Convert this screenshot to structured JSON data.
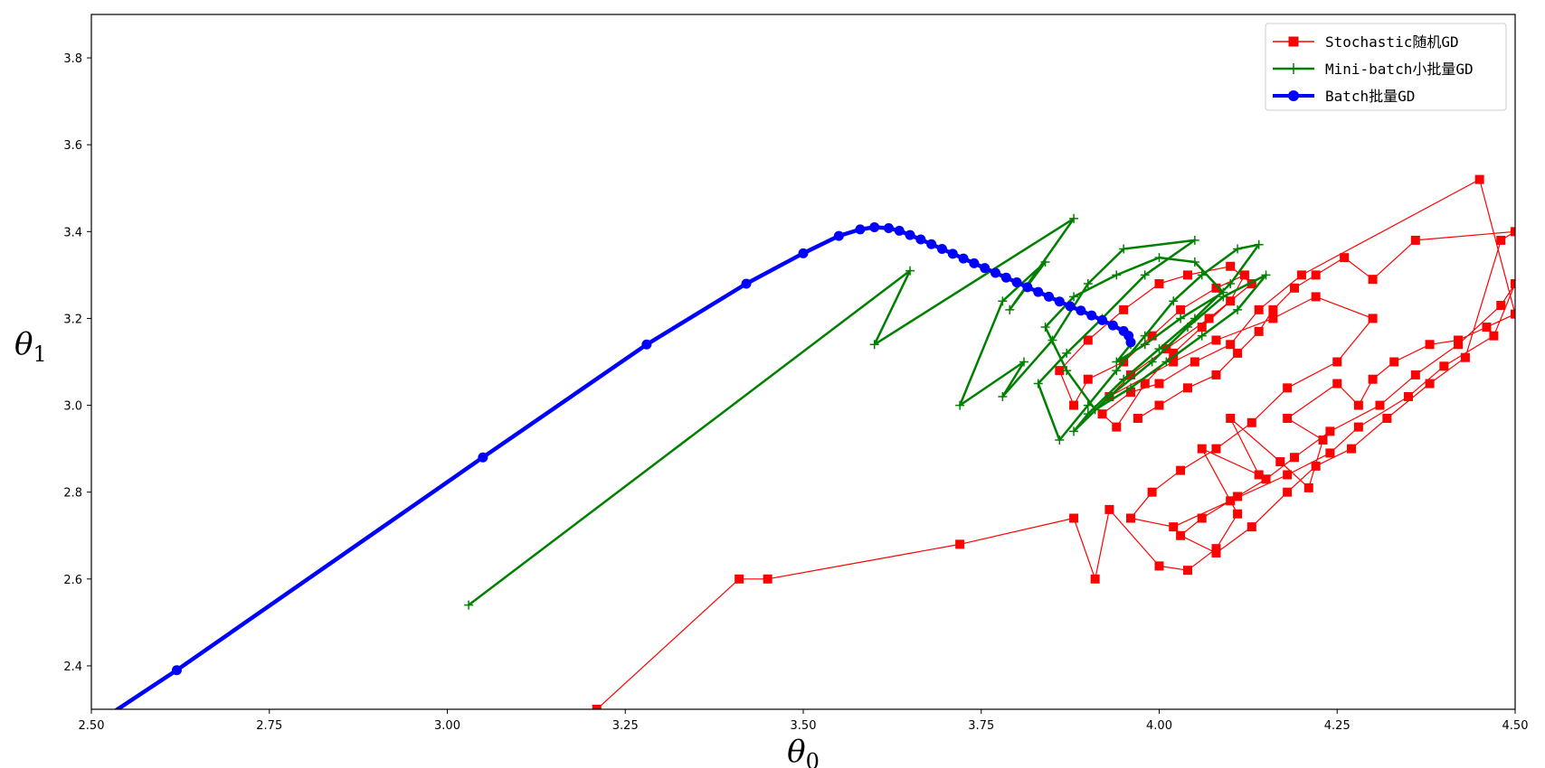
{
  "chart_data": {
    "type": "line",
    "title": "",
    "xlabel": "θ0",
    "ylabel": "θ1",
    "xlim": [
      2.5,
      4.5
    ],
    "ylim": [
      2.3,
      3.9
    ],
    "grid": false,
    "legend_position": "top-right",
    "x_ticks": [
      "2.50",
      "2.75",
      "3.00",
      "3.25",
      "3.50",
      "3.75",
      "4.00",
      "4.25",
      "4.50"
    ],
    "y_ticks": [
      "2.4",
      "2.6",
      "2.8",
      "3.0",
      "3.2",
      "3.4",
      "3.6",
      "3.8"
    ],
    "series": [
      {
        "name": "Stochastic随机GD",
        "color": "#ff0000",
        "marker": "square",
        "points": [
          [
            3.21,
            2.3
          ],
          [
            3.41,
            2.6
          ],
          [
            3.45,
            2.6
          ],
          [
            3.72,
            2.68
          ],
          [
            3.88,
            2.74
          ],
          [
            3.91,
            2.6
          ],
          [
            3.93,
            2.76
          ],
          [
            4.0,
            2.63
          ],
          [
            4.04,
            2.62
          ],
          [
            4.08,
            2.67
          ],
          [
            4.11,
            2.75
          ],
          [
            4.06,
            2.9
          ],
          [
            4.14,
            2.84
          ],
          [
            4.1,
            2.97
          ],
          [
            4.17,
            2.87
          ],
          [
            4.21,
            2.81
          ],
          [
            4.23,
            2.92
          ],
          [
            4.18,
            2.97
          ],
          [
            4.25,
            3.05
          ],
          [
            4.28,
            3.0
          ],
          [
            4.3,
            3.06
          ],
          [
            4.33,
            3.1
          ],
          [
            4.38,
            3.14
          ],
          [
            4.42,
            3.15
          ],
          [
            4.46,
            3.18
          ],
          [
            4.5,
            3.21
          ],
          [
            4.45,
            3.52
          ],
          [
            4.2,
            3.3
          ],
          [
            4.14,
            3.22
          ],
          [
            4.1,
            3.14
          ],
          [
            4.05,
            3.1
          ],
          [
            4.0,
            3.05
          ],
          [
            3.96,
            3.03
          ],
          [
            3.92,
            2.98
          ],
          [
            3.94,
            2.95
          ],
          [
            3.98,
            3.05
          ],
          [
            4.02,
            3.12
          ],
          [
            4.06,
            3.18
          ],
          [
            4.1,
            3.24
          ],
          [
            4.12,
            3.3
          ],
          [
            4.08,
            3.27
          ],
          [
            4.03,
            3.22
          ],
          [
            3.99,
            3.16
          ],
          [
            3.95,
            3.1
          ],
          [
            3.9,
            3.06
          ],
          [
            3.88,
            3.0
          ],
          [
            3.86,
            3.08
          ],
          [
            3.9,
            3.15
          ],
          [
            3.95,
            3.22
          ],
          [
            4.0,
            3.28
          ],
          [
            4.04,
            3.3
          ],
          [
            4.1,
            3.32
          ],
          [
            4.13,
            3.28
          ],
          [
            4.07,
            3.2
          ],
          [
            4.01,
            3.13
          ],
          [
            3.96,
            3.07
          ],
          [
            3.93,
            3.02
          ],
          [
            4.02,
            3.1
          ],
          [
            4.08,
            3.15
          ],
          [
            4.16,
            3.2
          ],
          [
            4.22,
            3.25
          ],
          [
            4.3,
            3.2
          ],
          [
            4.25,
            3.1
          ],
          [
            4.18,
            3.04
          ],
          [
            4.13,
            2.96
          ],
          [
            4.08,
            2.9
          ],
          [
            4.03,
            2.85
          ],
          [
            3.99,
            2.8
          ],
          [
            3.96,
            2.74
          ],
          [
            4.02,
            2.72
          ],
          [
            4.1,
            2.78
          ],
          [
            4.18,
            2.84
          ],
          [
            4.24,
            2.89
          ],
          [
            4.28,
            2.95
          ],
          [
            4.35,
            3.02
          ],
          [
            4.4,
            3.09
          ],
          [
            4.47,
            3.16
          ],
          [
            4.5,
            3.28
          ],
          [
            4.48,
            3.23
          ],
          [
            4.42,
            3.14
          ],
          [
            4.36,
            3.07
          ],
          [
            4.31,
            3.0
          ],
          [
            4.24,
            2.94
          ],
          [
            4.19,
            2.88
          ],
          [
            4.15,
            2.83
          ],
          [
            4.11,
            2.79
          ],
          [
            4.06,
            2.74
          ],
          [
            4.03,
            2.7
          ],
          [
            4.08,
            2.66
          ],
          [
            4.13,
            2.72
          ],
          [
            4.18,
            2.8
          ],
          [
            4.22,
            2.86
          ],
          [
            4.27,
            2.9
          ],
          [
            4.32,
            2.97
          ],
          [
            4.38,
            3.05
          ],
          [
            4.43,
            3.11
          ],
          [
            4.48,
            3.38
          ],
          [
            4.5,
            3.4
          ],
          [
            4.36,
            3.38
          ],
          [
            4.3,
            3.29
          ],
          [
            4.26,
            3.34
          ],
          [
            4.22,
            3.3
          ],
          [
            4.19,
            3.27
          ],
          [
            4.16,
            3.22
          ],
          [
            4.14,
            3.17
          ],
          [
            4.11,
            3.12
          ],
          [
            4.08,
            3.07
          ],
          [
            4.04,
            3.04
          ],
          [
            4.0,
            3.0
          ],
          [
            3.97,
            2.97
          ]
        ]
      },
      {
        "name": "Mini-batch小批量GD",
        "color": "#008000",
        "marker": "plus",
        "points": [
          [
            3.03,
            2.54
          ],
          [
            3.65,
            3.31
          ],
          [
            3.6,
            3.14
          ],
          [
            3.88,
            3.43
          ],
          [
            3.79,
            3.22
          ],
          [
            3.84,
            3.33
          ],
          [
            3.78,
            3.24
          ],
          [
            3.72,
            3.0
          ],
          [
            3.81,
            3.1
          ],
          [
            3.78,
            3.02
          ],
          [
            3.85,
            3.15
          ],
          [
            3.9,
            3.28
          ],
          [
            3.95,
            3.36
          ],
          [
            4.05,
            3.38
          ],
          [
            3.98,
            3.3
          ],
          [
            3.92,
            3.2
          ],
          [
            3.87,
            3.12
          ],
          [
            3.83,
            3.05
          ],
          [
            3.86,
            2.92
          ],
          [
            3.9,
            3.0
          ],
          [
            3.94,
            3.08
          ],
          [
            3.98,
            3.16
          ],
          [
            4.02,
            3.24
          ],
          [
            4.06,
            3.3
          ],
          [
            4.11,
            3.36
          ],
          [
            4.14,
            3.37
          ],
          [
            4.1,
            3.28
          ],
          [
            4.05,
            3.2
          ],
          [
            4.0,
            3.13
          ],
          [
            3.95,
            3.06
          ],
          [
            3.9,
            2.98
          ],
          [
            3.88,
            2.94
          ],
          [
            3.93,
            3.02
          ],
          [
            3.99,
            3.1
          ],
          [
            4.04,
            3.18
          ],
          [
            4.09,
            3.25
          ],
          [
            4.15,
            3.3
          ],
          [
            4.11,
            3.22
          ],
          [
            4.06,
            3.16
          ],
          [
            4.01,
            3.1
          ],
          [
            3.96,
            3.04
          ],
          [
            3.91,
            2.99
          ],
          [
            3.87,
            3.08
          ],
          [
            3.84,
            3.18
          ],
          [
            3.88,
            3.25
          ],
          [
            3.94,
            3.3
          ],
          [
            4.0,
            3.34
          ],
          [
            4.05,
            3.33
          ],
          [
            4.09,
            3.26
          ],
          [
            4.03,
            3.2
          ],
          [
            3.98,
            3.14
          ],
          [
            3.94,
            3.1
          ],
          [
            3.96,
            3.14
          ]
        ]
      },
      {
        "name": "Batch批量GD",
        "color": "#0000ff",
        "marker": "circle",
        "points": [
          [
            2.5,
            2.26
          ],
          [
            2.62,
            2.39
          ],
          [
            3.05,
            2.88
          ],
          [
            3.28,
            3.14
          ],
          [
            3.42,
            3.28
          ],
          [
            3.5,
            3.35
          ],
          [
            3.55,
            3.39
          ],
          [
            3.58,
            3.405
          ],
          [
            3.6,
            3.41
          ],
          [
            3.62,
            3.408
          ],
          [
            3.635,
            3.402
          ],
          [
            3.65,
            3.392
          ],
          [
            3.665,
            3.382
          ],
          [
            3.68,
            3.371
          ],
          [
            3.695,
            3.36
          ],
          [
            3.71,
            3.349
          ],
          [
            3.725,
            3.338
          ],
          [
            3.74,
            3.327
          ],
          [
            3.755,
            3.316
          ],
          [
            3.77,
            3.305
          ],
          [
            3.785,
            3.294
          ],
          [
            3.8,
            3.283
          ],
          [
            3.815,
            3.272
          ],
          [
            3.83,
            3.261
          ],
          [
            3.845,
            3.25
          ],
          [
            3.86,
            3.239
          ],
          [
            3.875,
            3.228
          ],
          [
            3.89,
            3.218
          ],
          [
            3.905,
            3.207
          ],
          [
            3.92,
            3.196
          ],
          [
            3.935,
            3.184
          ],
          [
            3.95,
            3.171
          ],
          [
            3.957,
            3.16
          ],
          [
            3.96,
            3.145
          ]
        ]
      }
    ]
  }
}
